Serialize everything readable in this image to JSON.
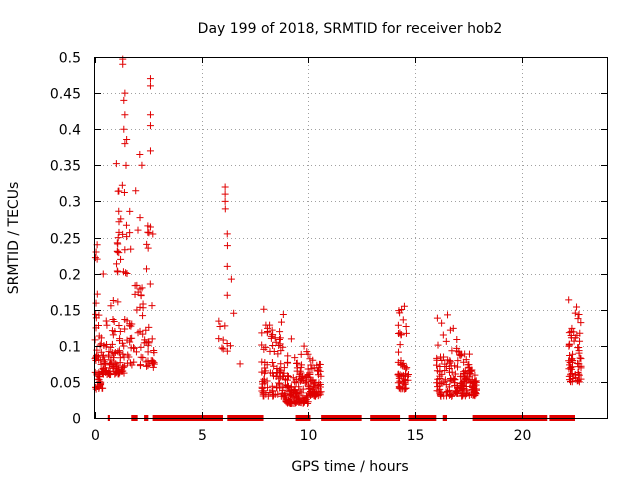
{
  "chart_data": {
    "type": "scatter",
    "title": "Day 199 of 2018, SRMTID for receiver hob2",
    "xlabel": "GPS time / hours",
    "ylabel": "SRMTID / TECUs",
    "xlim": [
      0,
      24
    ],
    "ylim": [
      0,
      0.5
    ],
    "x_ticks": [
      0,
      5,
      10,
      15,
      20
    ],
    "y_ticks": [
      0,
      0.05,
      0.1,
      0.15,
      0.2,
      0.25,
      0.3,
      0.35,
      0.4,
      0.45,
      0.5
    ],
    "grid": true,
    "marker": "+",
    "marker_color": "#e00000",
    "clusters": [
      {
        "x_range": [
          0.0,
          0.4
        ],
        "y_range": [
          0.04,
          0.24
        ],
        "n": 55
      },
      {
        "x_range": [
          0.4,
          1.4
        ],
        "y_range": [
          0.06,
          0.18
        ],
        "n": 85
      },
      {
        "x_range": [
          1.0,
          1.5
        ],
        "y_range": [
          0.2,
          0.45
        ],
        "n": 28
      },
      {
        "x_range": [
          1.5,
          2.8
        ],
        "y_range": [
          0.07,
          0.37
        ],
        "n": 80
      },
      {
        "x_range": [
          5.8,
          6.4
        ],
        "y_range": [
          0.08,
          0.32
        ],
        "n": 12
      },
      {
        "x_range": [
          7.8,
          8.9
        ],
        "y_range": [
          0.03,
          0.18
        ],
        "n": 95
      },
      {
        "x_range": [
          8.9,
          10.0
        ],
        "y_range": [
          0.02,
          0.12
        ],
        "n": 120
      },
      {
        "x_range": [
          10.0,
          10.6
        ],
        "y_range": [
          0.03,
          0.1
        ],
        "n": 60
      },
      {
        "x_range": [
          14.2,
          14.7
        ],
        "y_range": [
          0.04,
          0.17
        ],
        "n": 55
      },
      {
        "x_range": [
          16.0,
          17.2
        ],
        "y_range": [
          0.03,
          0.15
        ],
        "n": 100
      },
      {
        "x_range": [
          17.2,
          17.9
        ],
        "y_range": [
          0.03,
          0.1
        ],
        "n": 80
      },
      {
        "x_range": [
          22.2,
          22.8
        ],
        "y_range": [
          0.05,
          0.19
        ],
        "n": 65
      }
    ],
    "notable_points": [
      {
        "x": 1.3,
        "y": 0.49
      },
      {
        "x": 1.3,
        "y": 0.497
      },
      {
        "x": 1.4,
        "y": 0.45
      },
      {
        "x": 1.35,
        "y": 0.44
      },
      {
        "x": 1.4,
        "y": 0.42
      },
      {
        "x": 1.35,
        "y": 0.4
      },
      {
        "x": 1.4,
        "y": 0.38
      },
      {
        "x": 2.6,
        "y": 0.47
      },
      {
        "x": 2.6,
        "y": 0.46
      },
      {
        "x": 2.6,
        "y": 0.42
      },
      {
        "x": 2.6,
        "y": 0.405
      },
      {
        "x": 2.6,
        "y": 0.37
      },
      {
        "x": 2.1,
        "y": 0.365
      },
      {
        "x": 2.2,
        "y": 0.35
      },
      {
        "x": 6.1,
        "y": 0.32
      },
      {
        "x": 6.1,
        "y": 0.31
      },
      {
        "x": 6.1,
        "y": 0.3
      },
      {
        "x": 6.2,
        "y": 0.255
      },
      {
        "x": 6.2,
        "y": 0.21
      },
      {
        "x": 6.2,
        "y": 0.17
      },
      {
        "x": 6.8,
        "y": 0.075
      },
      {
        "x": 5.8,
        "y": 0.11
      },
      {
        "x": 6.5,
        "y": 0.145
      },
      {
        "x": 0.1,
        "y": 0.24
      },
      {
        "x": 0.05,
        "y": 0.23
      },
      {
        "x": 0.1,
        "y": 0.22
      }
    ],
    "zero_segments": [
      [
        0.6,
        0.7
      ],
      [
        1.7,
        2.0
      ],
      [
        2.3,
        2.5
      ],
      [
        2.7,
        6.0
      ],
      [
        6.2,
        7.9
      ],
      [
        9.4,
        10.1
      ],
      [
        10.6,
        12.5
      ],
      [
        12.9,
        14.3
      ],
      [
        14.7,
        16.0
      ],
      [
        16.3,
        16.5
      ],
      [
        17.7,
        21.2
      ],
      [
        21.3,
        22.5
      ]
    ]
  }
}
